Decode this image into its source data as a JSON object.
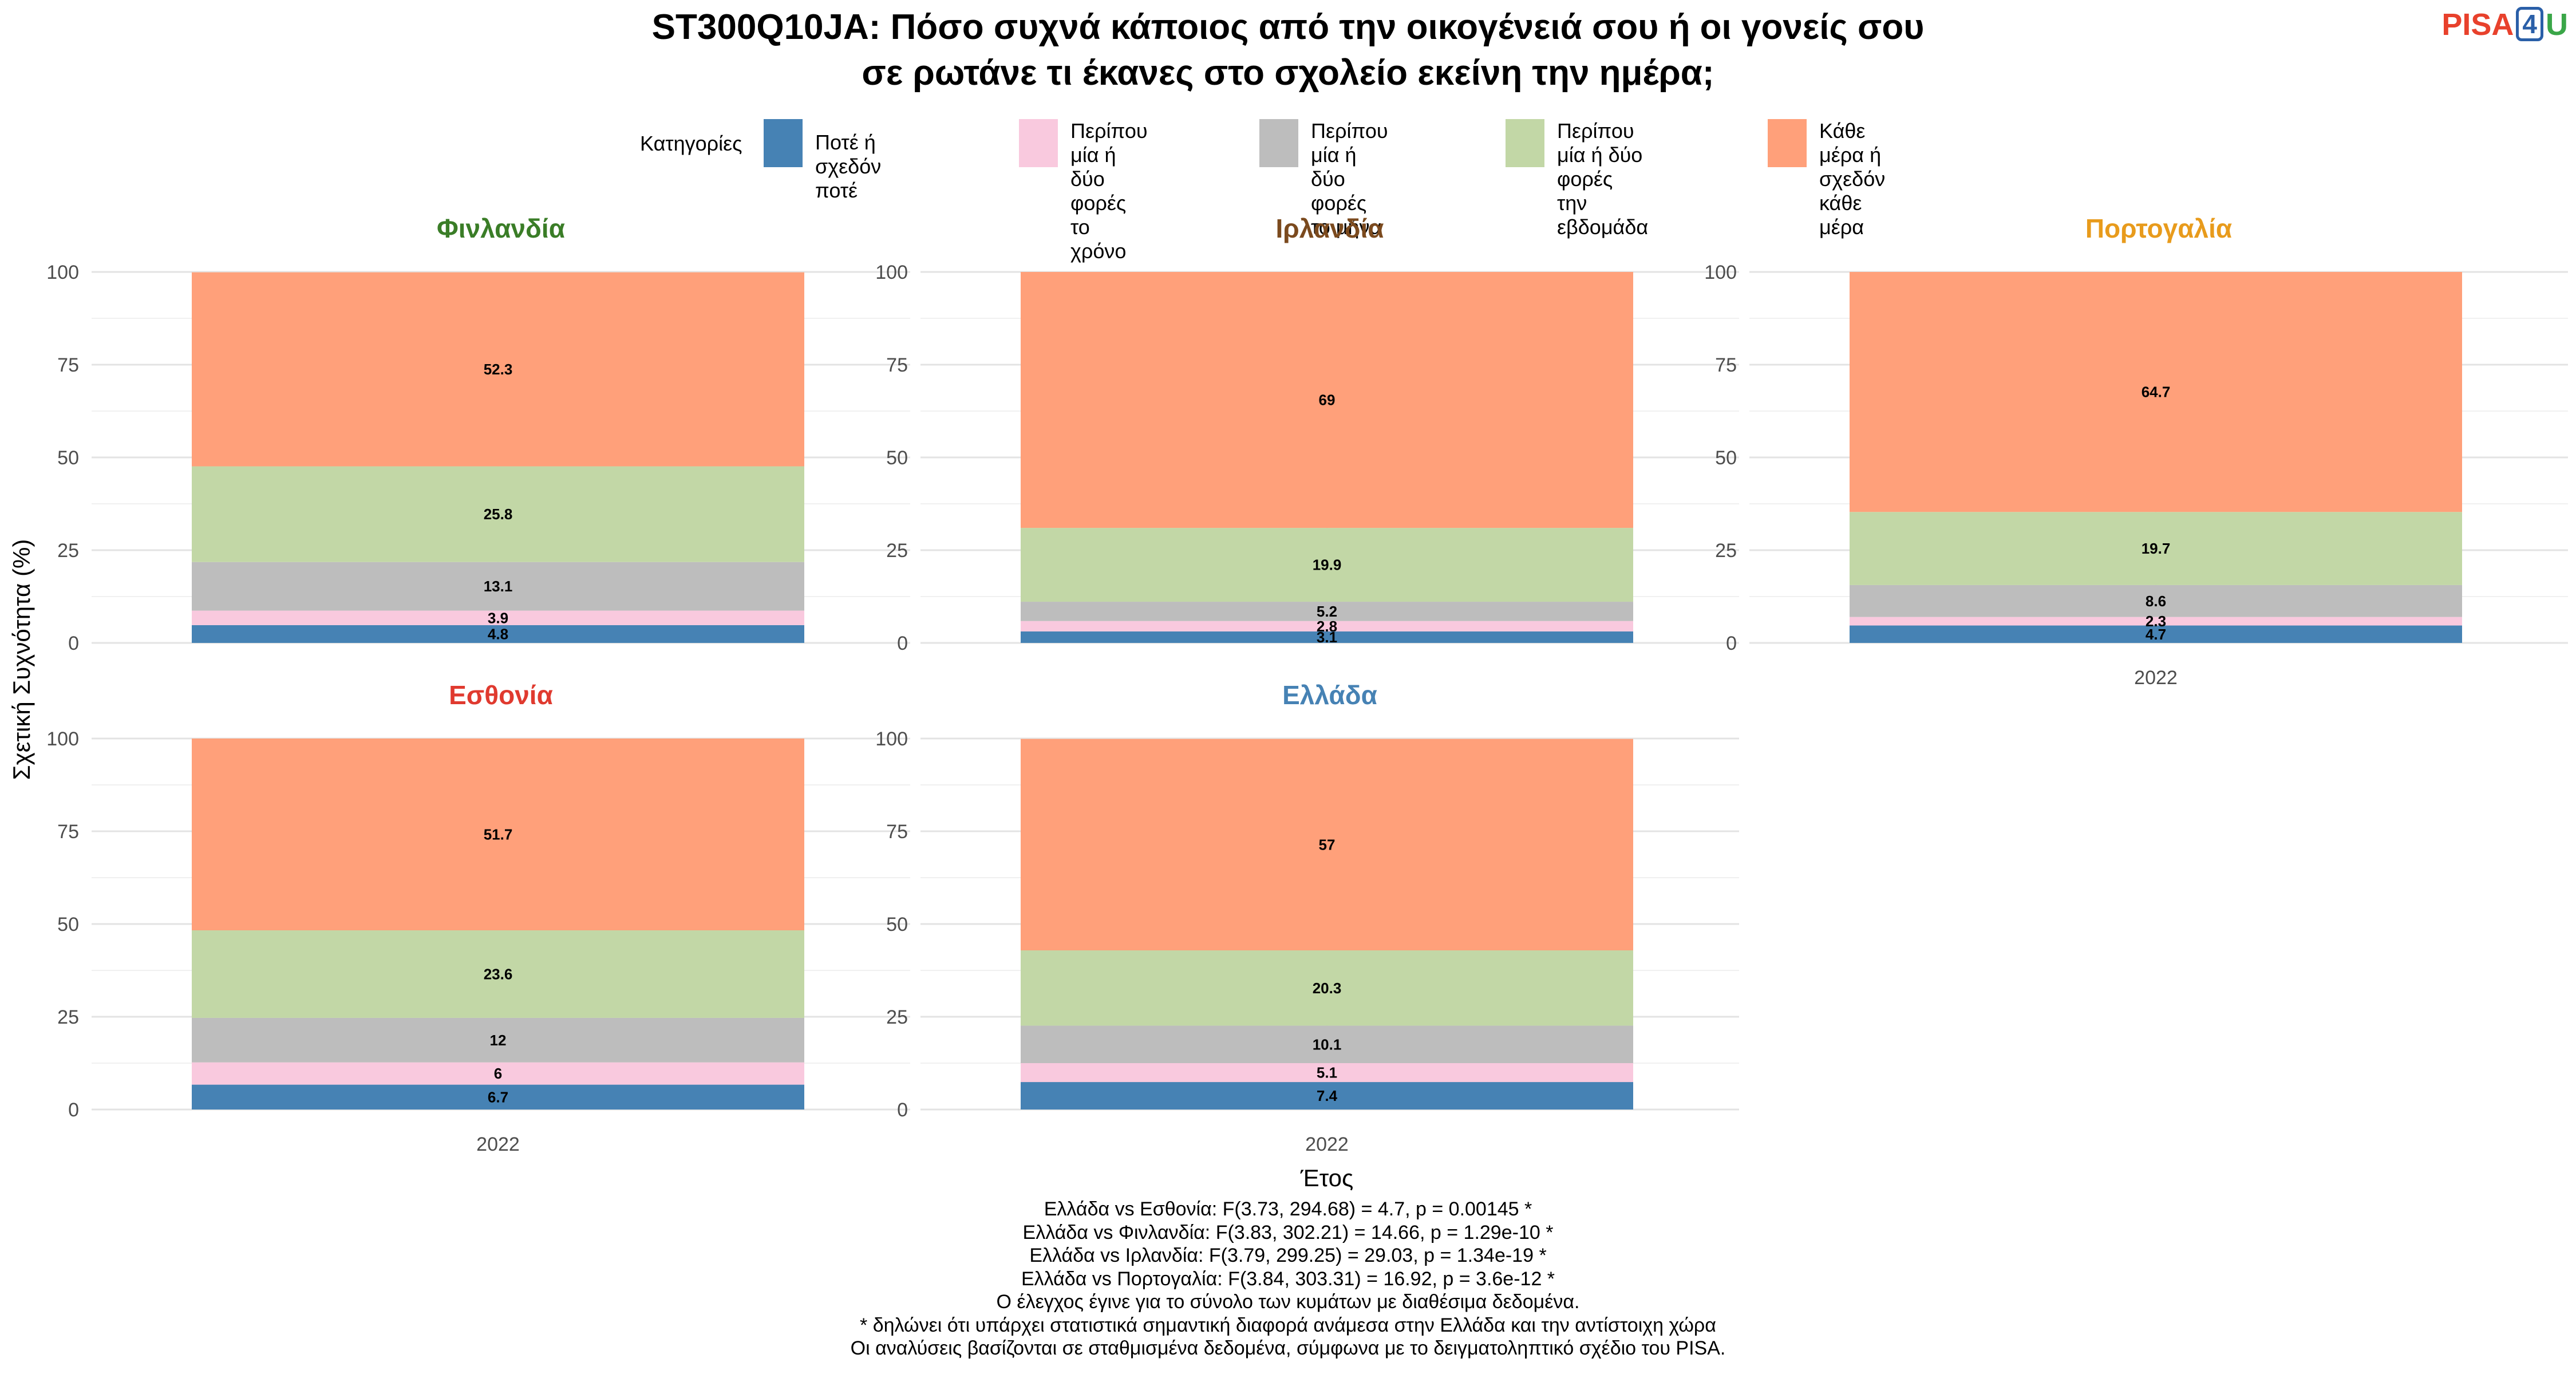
{
  "title_lines": [
    "ST300Q10JA: Πόσο συχνά κάποιος από την οικογένειά σου ή οι γονείς σου",
    "σε ρωτάνε τι έκανες στο σχολείο εκείνη την ημέρα;"
  ],
  "logo": {
    "part1": "PISA",
    "part2": "4",
    "part3": "U"
  },
  "legend": {
    "title": "Κατηγορίες",
    "items": [
      {
        "label": "Ποτέ ή σχεδόν ποτέ",
        "color": "#4682b4"
      },
      {
        "label": "Περίπου μία ή δύο\nφορές το χρόνο",
        "color": "#f9c9de"
      },
      {
        "label": "Περίπου μία ή δύο\nφορές το μήνα",
        "color": "#bdbdbd"
      },
      {
        "label": "Περίπου μία ή δύο\nφορές την εβδομάδα",
        "color": "#c2d7a6"
      },
      {
        "label": "Κάθε μέρα ή σχεδόν\nκάθε μέρα",
        "color": "#ffa07a"
      }
    ]
  },
  "chart_data": {
    "type": "bar",
    "stacked": true,
    "ylabel": "Σχετική Συχνότητα (%)",
    "xlabel": "Έτος",
    "ylim": [
      0,
      100
    ],
    "yticks": [
      0,
      25,
      50,
      75,
      100
    ],
    "grid": true,
    "categories": [
      "2022"
    ],
    "series_names": [
      "Ποτέ ή σχεδόν ποτέ",
      "Περίπου μία ή δύο φορές το χρόνο",
      "Περίπου μία ή δύο φορές το μήνα",
      "Περίπου μία ή δύο φορές την εβδομάδα",
      "Κάθε μέρα ή σχεδόν κάθε μέρα"
    ],
    "series_colors": [
      "#4682b4",
      "#f9c9de",
      "#bdbdbd",
      "#c2d7a6",
      "#ffa07a"
    ],
    "panels": [
      {
        "country": "Φινλανδία",
        "title_color": "#3a7d27",
        "values": [
          4.8,
          3.9,
          13.1,
          25.8,
          52.3
        ],
        "show_x_axis": false
      },
      {
        "country": "Ιρλανδία",
        "title_color": "#7b4a1e",
        "values": [
          3.1,
          2.8,
          5.2,
          19.9,
          69
        ],
        "show_x_axis": false
      },
      {
        "country": "Πορτογαλία",
        "title_color": "#e89b1c",
        "values": [
          4.7,
          2.3,
          8.6,
          19.7,
          64.7
        ],
        "show_x_axis": true
      },
      {
        "country": "Εσθονία",
        "title_color": "#e03a2f",
        "values": [
          6.7,
          6,
          12,
          23.6,
          51.7
        ],
        "show_x_axis": true
      },
      {
        "country": "Ελλάδα",
        "title_color": "#4682b4",
        "values": [
          7.4,
          5.1,
          10.1,
          20.3,
          57
        ],
        "show_x_axis": true
      }
    ]
  },
  "caption_lines": [
    "Ελλάδα vs Εσθονία: F(3.73, 294.68) = 4.7, p = 0.00145 *",
    "Ελλάδα vs Φινλανδία: F(3.83, 302.21) = 14.66, p = 1.29e-10 *",
    "Ελλάδα vs Ιρλανδία: F(3.79, 299.25) = 29.03, p = 1.34e-19 *",
    "Ελλάδα vs Πορτογαλία: F(3.84, 303.31) = 16.92, p = 3.6e-12 *",
    "Ο έλεγχος έγινε για το σύνολο των κυμάτων με διαθέσιμα δεδομένα.",
    "* δηλώνει ότι υπάρχει στατιστικά σημαντική διαφορά ανάμεσα στην Ελλάδα και την αντίστοιχη χώρα",
    "Οι αναλύσεις βασίζονται σε σταθμισμένα δεδομένα, σύμφωνα με το δειγματοληπτικό σχέδιο του PISA."
  ]
}
